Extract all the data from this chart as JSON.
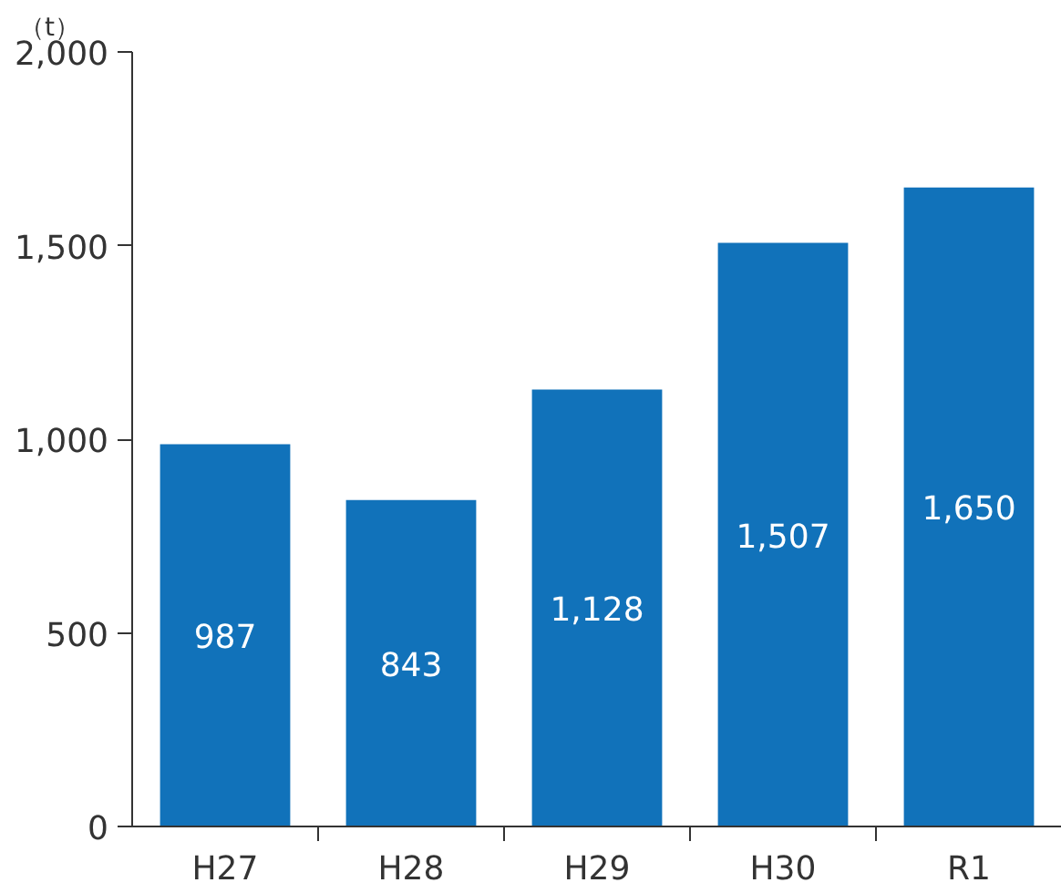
{
  "chart_data": {
    "type": "bar",
    "ylabel": "（t）",
    "categories": [
      "H27",
      "H28",
      "H29",
      "H30",
      "R1"
    ],
    "values": [
      987,
      843,
      1128,
      1507,
      1650
    ],
    "color": "#1172ba",
    "ylim": [
      0,
      2000
    ],
    "yticks": [
      0,
      500,
      {
        "value": 1000,
        "label": "1,000"
      },
      {
        "value": 1500,
        "label": "1,500"
      },
      {
        "value": 2000,
        "label": "2,000"
      }
    ],
    "value_labels": [
      "987",
      "843",
      "1,128",
      "1,507",
      "1,650"
    ]
  }
}
